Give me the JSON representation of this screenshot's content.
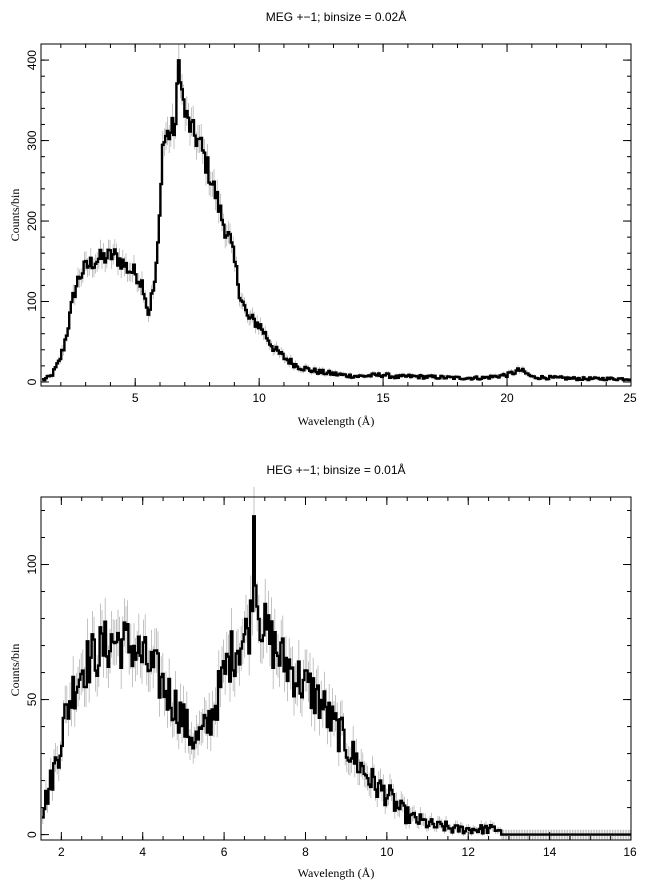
{
  "chart_data": [
    {
      "type": "line",
      "title": "MEG +−1; binsize = 0.02Å",
      "xlabel": "Wavelength (Å)",
      "ylabel": "Counts/bin",
      "xlim": [
        1.2,
        25
      ],
      "ylim": [
        -5,
        420
      ],
      "xticks_major": [
        5,
        10,
        15,
        20,
        25
      ],
      "xticks_minor_step": 1,
      "yticks_major": [
        0,
        100,
        200,
        300,
        400
      ],
      "yticks_minor_step": 20,
      "grid": false,
      "error_bars": true,
      "x": [
        1.3,
        1.6,
        1.9,
        2.1,
        2.3,
        2.5,
        2.7,
        2.9,
        3.2,
        3.5,
        3.8,
        4.1,
        4.4,
        4.7,
        5.0,
        5.3,
        5.5,
        5.6,
        5.8,
        5.95,
        6.05,
        6.2,
        6.4,
        6.6,
        6.75,
        6.85,
        7.0,
        7.3,
        7.6,
        7.9,
        8.2,
        8.5,
        8.8,
        9.0,
        9.2,
        9.5,
        9.8,
        10.0,
        10.3,
        10.6,
        11.0,
        11.5,
        12.0,
        12.5,
        13.0,
        13.5,
        14.0,
        14.5,
        15.0,
        15.5,
        16.0,
        17.0,
        18.0,
        19.0,
        20.0,
        20.5,
        21.0,
        22.0,
        23.0,
        24.0,
        25.0
      ],
      "y": [
        3,
        8,
        25,
        45,
        75,
        110,
        130,
        140,
        148,
        153,
        155,
        158,
        150,
        140,
        135,
        120,
        85,
        100,
        130,
        200,
        290,
        305,
        310,
        320,
        410,
        360,
        330,
        310,
        295,
        265,
        235,
        200,
        175,
        145,
        110,
        80,
        75,
        70,
        55,
        40,
        30,
        20,
        15,
        12,
        10,
        8,
        7,
        8,
        9,
        6,
        7,
        6,
        5,
        5,
        9,
        15,
        6,
        5,
        4,
        4,
        4
      ]
    },
    {
      "type": "line",
      "title": "HEG +−1; binsize = 0.01Å",
      "xlabel": "Wavelength (Å)",
      "ylabel": "Counts/bin",
      "xlim": [
        1.5,
        16
      ],
      "ylim": [
        -2,
        125
      ],
      "xticks_major": [
        2,
        4,
        6,
        8,
        10,
        12,
        14,
        16
      ],
      "xticks_minor_step": 0.5,
      "yticks_major": [
        0,
        50,
        100
      ],
      "yticks_minor_step": 10,
      "grid": false,
      "error_bars": true,
      "x": [
        1.5,
        1.7,
        1.9,
        2.1,
        2.3,
        2.5,
        2.7,
        2.9,
        3.1,
        3.3,
        3.5,
        3.7,
        3.9,
        4.1,
        4.3,
        4.5,
        4.7,
        4.9,
        5.1,
        5.3,
        5.5,
        5.7,
        5.9,
        6.1,
        6.3,
        6.5,
        6.65,
        6.72,
        6.8,
        7.0,
        7.2,
        7.4,
        7.6,
        7.8,
        8.0,
        8.2,
        8.4,
        8.6,
        8.8,
        9.0,
        9.2,
        9.4,
        9.6,
        9.8,
        10.0,
        10.2,
        10.4,
        10.6,
        10.8,
        11.0,
        11.2,
        11.4,
        11.6,
        11.8,
        12.0,
        12.2,
        12.4,
        12.6,
        12.78,
        12.8,
        13.5,
        14.5,
        15.5,
        16.0
      ],
      "y": [
        8,
        18,
        30,
        45,
        55,
        62,
        65,
        68,
        70,
        72,
        71,
        70,
        67,
        63,
        60,
        55,
        50,
        45,
        38,
        35,
        38,
        45,
        55,
        65,
        70,
        73,
        80,
        118,
        85,
        75,
        70,
        65,
        62,
        58,
        55,
        52,
        48,
        42,
        38,
        33,
        28,
        24,
        20,
        17,
        15,
        11,
        8,
        6,
        5,
        4,
        3,
        3,
        2,
        2,
        2,
        2,
        2,
        2,
        2,
        0,
        0,
        0,
        0,
        0
      ]
    }
  ]
}
